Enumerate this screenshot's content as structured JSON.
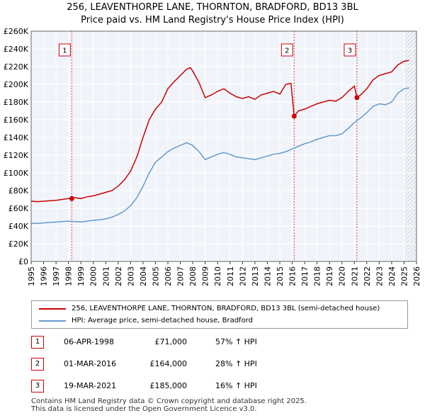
{
  "title_line1": "256, LEAVENTHORPE LANE, THORNTON, BRADFORD, BD13 3BL",
  "title_line2": "Price paid vs. HM Land Registry's House Price Index (HPI)",
  "legend": {
    "property_label": "256, LEAVENTHORPE LANE, THORNTON, BRADFORD, BD13 3BL (semi-detached house)",
    "hpi_label": "HPI: Average price, semi-detached house, Bradford",
    "property_color": "#cc0000",
    "hpi_color": "#6699cc"
  },
  "transactions": [
    {
      "num": "1",
      "date": "06-APR-1998",
      "price": "£71,000",
      "hpi": "57% ↑ HPI"
    },
    {
      "num": "2",
      "date": "01-MAR-2016",
      "price": "£164,000",
      "hpi": "28% ↑ HPI"
    },
    {
      "num": "3",
      "date": "19-MAR-2021",
      "price": "£185,000",
      "hpi": "16% ↑ HPI"
    }
  ],
  "footer_line1": "Contains HM Land Registry data © Crown copyright and database right 2025.",
  "footer_line2": "This data is licensed under the Open Government Licence v3.0.",
  "chart_data": {
    "type": "line",
    "xlim": [
      1995,
      2026
    ],
    "ylim": [
      0,
      260000
    ],
    "y_ticks": [
      0,
      20000,
      40000,
      60000,
      80000,
      100000,
      120000,
      140000,
      160000,
      180000,
      200000,
      220000,
      240000,
      260000
    ],
    "y_tick_labels": [
      "£0",
      "£20K",
      "£40K",
      "£60K",
      "£80K",
      "£100K",
      "£120K",
      "£140K",
      "£160K",
      "£180K",
      "£200K",
      "£220K",
      "£240K",
      "£260K"
    ],
    "x_ticks": [
      1995,
      1996,
      1997,
      1998,
      1999,
      2000,
      2001,
      2002,
      2003,
      2004,
      2005,
      2006,
      2007,
      2008,
      2009,
      2010,
      2011,
      2012,
      2013,
      2014,
      2015,
      2016,
      2017,
      2018,
      2019,
      2020,
      2021,
      2022,
      2023,
      2024,
      2025,
      2026
    ],
    "grid": true,
    "forecast_start": 2025.0,
    "series": [
      {
        "name": "256, LEAVENTHORPE LANE, THORNTON, BRADFORD, BD13 3BL (semi-detached house)",
        "color": "#cc0000",
        "points": [
          [
            1995.0,
            68000
          ],
          [
            1995.5,
            67500
          ],
          [
            1996.0,
            68000
          ],
          [
            1996.5,
            68500
          ],
          [
            1997.0,
            69000
          ],
          [
            1997.5,
            70000
          ],
          [
            1998.0,
            71000
          ],
          [
            1998.27,
            71000
          ],
          [
            1998.5,
            72000
          ],
          [
            1999.0,
            71000
          ],
          [
            1999.5,
            73000
          ],
          [
            2000.0,
            74000
          ],
          [
            2000.5,
            76000
          ],
          [
            2001.0,
            78000
          ],
          [
            2001.5,
            80000
          ],
          [
            2002.0,
            85000
          ],
          [
            2002.5,
            92000
          ],
          [
            2003.0,
            102000
          ],
          [
            2003.5,
            118000
          ],
          [
            2004.0,
            140000
          ],
          [
            2004.5,
            160000
          ],
          [
            2005.0,
            172000
          ],
          [
            2005.5,
            180000
          ],
          [
            2006.0,
            195000
          ],
          [
            2006.5,
            203000
          ],
          [
            2007.0,
            210000
          ],
          [
            2007.5,
            217000
          ],
          [
            2007.8,
            219000
          ],
          [
            2008.0,
            215000
          ],
          [
            2008.5,
            202000
          ],
          [
            2009.0,
            185000
          ],
          [
            2009.5,
            188000
          ],
          [
            2010.0,
            192000
          ],
          [
            2010.5,
            195000
          ],
          [
            2011.0,
            190000
          ],
          [
            2011.5,
            186000
          ],
          [
            2012.0,
            184000
          ],
          [
            2012.5,
            186000
          ],
          [
            2013.0,
            183000
          ],
          [
            2013.5,
            188000
          ],
          [
            2014.0,
            190000
          ],
          [
            2014.5,
            192000
          ],
          [
            2015.0,
            189000
          ],
          [
            2015.5,
            200000
          ],
          [
            2015.9,
            201000
          ],
          [
            2016.16,
            164000
          ],
          [
            2016.5,
            170000
          ],
          [
            2017.0,
            172000
          ],
          [
            2017.5,
            175000
          ],
          [
            2018.0,
            178000
          ],
          [
            2018.5,
            180000
          ],
          [
            2019.0,
            182000
          ],
          [
            2019.5,
            181000
          ],
          [
            2020.0,
            185000
          ],
          [
            2020.5,
            192000
          ],
          [
            2021.0,
            198000
          ],
          [
            2021.21,
            185000
          ],
          [
            2021.5,
            188000
          ],
          [
            2022.0,
            195000
          ],
          [
            2022.5,
            205000
          ],
          [
            2023.0,
            210000
          ],
          [
            2023.5,
            212000
          ],
          [
            2024.0,
            214000
          ],
          [
            2024.5,
            222000
          ],
          [
            2025.0,
            226000
          ],
          [
            2025.4,
            227000
          ]
        ]
      },
      {
        "name": "HPI: Average price, semi-detached house, Bradford",
        "color": "#6699cc",
        "points": [
          [
            1995.0,
            43000
          ],
          [
            1995.5,
            43000
          ],
          [
            1996.0,
            43500
          ],
          [
            1996.5,
            44000
          ],
          [
            1997.0,
            44500
          ],
          [
            1997.5,
            45000
          ],
          [
            1998.0,
            45500
          ],
          [
            1998.5,
            45000
          ],
          [
            1999.0,
            44500
          ],
          [
            1999.5,
            45500
          ],
          [
            2000.0,
            46500
          ],
          [
            2000.5,
            47000
          ],
          [
            2001.0,
            48000
          ],
          [
            2001.5,
            50000
          ],
          [
            2002.0,
            53000
          ],
          [
            2002.5,
            57000
          ],
          [
            2003.0,
            63000
          ],
          [
            2003.5,
            72000
          ],
          [
            2004.0,
            85000
          ],
          [
            2004.5,
            100000
          ],
          [
            2005.0,
            112000
          ],
          [
            2005.5,
            118000
          ],
          [
            2006.0,
            124000
          ],
          [
            2006.5,
            128000
          ],
          [
            2007.0,
            131000
          ],
          [
            2007.5,
            134000
          ],
          [
            2008.0,
            131000
          ],
          [
            2008.5,
            124000
          ],
          [
            2009.0,
            115000
          ],
          [
            2009.5,
            118000
          ],
          [
            2010.0,
            121000
          ],
          [
            2010.5,
            123000
          ],
          [
            2011.0,
            121000
          ],
          [
            2011.5,
            118000
          ],
          [
            2012.0,
            117000
          ],
          [
            2012.5,
            116000
          ],
          [
            2013.0,
            115000
          ],
          [
            2013.5,
            117000
          ],
          [
            2014.0,
            119000
          ],
          [
            2014.5,
            121000
          ],
          [
            2015.0,
            122000
          ],
          [
            2015.5,
            124000
          ],
          [
            2016.0,
            127000
          ],
          [
            2016.5,
            130000
          ],
          [
            2017.0,
            133000
          ],
          [
            2017.5,
            135000
          ],
          [
            2018.0,
            138000
          ],
          [
            2018.5,
            140000
          ],
          [
            2019.0,
            142000
          ],
          [
            2019.5,
            142000
          ],
          [
            2020.0,
            144000
          ],
          [
            2020.5,
            150000
          ],
          [
            2021.0,
            157000
          ],
          [
            2021.5,
            162000
          ],
          [
            2022.0,
            168000
          ],
          [
            2022.5,
            175000
          ],
          [
            2023.0,
            178000
          ],
          [
            2023.5,
            177000
          ],
          [
            2024.0,
            180000
          ],
          [
            2024.5,
            190000
          ],
          [
            2025.0,
            195000
          ],
          [
            2025.4,
            196000
          ]
        ]
      }
    ],
    "markers": [
      {
        "label": "1",
        "x": 1998.27,
        "y": 71000
      },
      {
        "label": "2",
        "x": 2016.16,
        "y": 164000
      },
      {
        "label": "3",
        "x": 2021.21,
        "y": 185000
      }
    ]
  }
}
